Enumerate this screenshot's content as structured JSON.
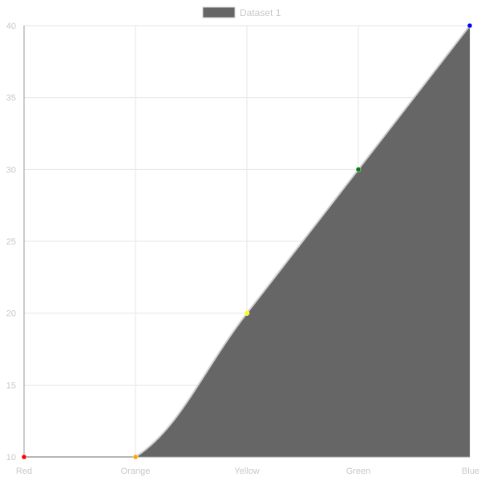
{
  "chart_data": {
    "type": "area",
    "categories": [
      "Red",
      "Orange",
      "Yellow",
      "Green",
      "Blue"
    ],
    "series": [
      {
        "name": "Dataset 1",
        "values": [
          10,
          10,
          20,
          30,
          40
        ],
        "fill_color": "#666666",
        "line_color": "#d0d0d0",
        "point_colors": [
          "#ff0000",
          "#ffa500",
          "#ffff00",
          "#008000",
          "#0000ff"
        ]
      }
    ],
    "yticks": [
      10,
      15,
      20,
      25,
      30,
      35,
      40
    ],
    "ylim": [
      10,
      40
    ],
    "grid": true,
    "legend_position": "top",
    "colors": {
      "grid": "#e6e6e6",
      "axis": "#9a9a9a",
      "tick_text": "#c8c8c8"
    }
  }
}
